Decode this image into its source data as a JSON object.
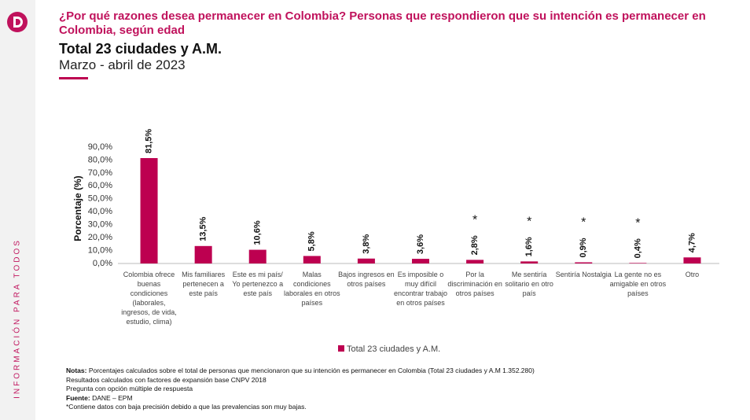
{
  "header": {
    "title": "¿Por qué razones desea permanecer en Colombia? Personas que respondieron que su intención es permanecer en Colombia, según edad",
    "subtitle": "Total 23 ciudades y A.M.",
    "period": "Marzo - abril de 2023"
  },
  "sidebar": {
    "slogan": "INFORMACIÓN PARA TODOS"
  },
  "chart_data": {
    "type": "bar",
    "y_label": "Porcentaje (%)",
    "categories": [
      "Colombia ofrece buenas condiciones (laborales, ingresos, de vida, estudio, clima)",
      "Mis familiares pertenecen a este país",
      "Este es mi país/ Yo pertenezco a este país",
      "Malas condiciones laborales en otros países",
      "Bajos ingresos en otros países",
      "Es imposible o muy difícil encontrar trabajo en otros países",
      "Por la discriminación en otros países",
      "Me sentiría solitario en otro país",
      "Sentiría Nostalgia",
      "La gente no es amigable en otros países",
      "Otro"
    ],
    "series": [
      {
        "name": "Total 23 ciudades y A.M.",
        "color": "#bd0050",
        "values": [
          81.5,
          13.5,
          10.6,
          5.8,
          3.8,
          3.6,
          2.8,
          1.6,
          0.9,
          0.4,
          4.7
        ],
        "value_labels": [
          "81,5%",
          "13,5%",
          "10,6%",
          "5,8%",
          "3,8%",
          "3,6%",
          "2,8%",
          "1,6%",
          "0,9%",
          "0,4%",
          "4,7%"
        ]
      }
    ],
    "low_precision": [
      false,
      false,
      false,
      false,
      false,
      false,
      true,
      true,
      true,
      true,
      false
    ],
    "low_precision_marker": "*",
    "ylim": [
      0,
      90
    ],
    "yticks": [
      {
        "value": 0,
        "label": "0,0%"
      },
      {
        "value": 10,
        "label": "10,0%"
      },
      {
        "value": 20,
        "label": "20,0%"
      },
      {
        "value": 30,
        "label": "30,0%"
      },
      {
        "value": 40,
        "label": "40,0%"
      },
      {
        "value": 50,
        "label": "50,0%"
      },
      {
        "value": 60,
        "label": "60,0%"
      },
      {
        "value": 70,
        "label": "70,0%"
      },
      {
        "value": 80,
        "label": "80,0%"
      },
      {
        "value": 90,
        "label": "90,0%"
      }
    ],
    "grid": false,
    "legend": "bottom"
  },
  "notes": [
    {
      "label": "Notas:",
      "text": " Porcentajes calculados sobre el total de personas que mencionaron que su intención es permanecer en Colombia (Total 23 ciudades y A.M 1.352.280)"
    },
    {
      "text": "Resultados calculados con factores de expansión base CNPV 2018"
    },
    {
      "text": "Pregunta con opción múltiple de respuesta"
    },
    {
      "label": "Fuente:",
      "text": " DANE – EPM"
    },
    {
      "text": "*Contiene datos con baja precisión debido a que las prevalencias son muy bajas."
    }
  ]
}
